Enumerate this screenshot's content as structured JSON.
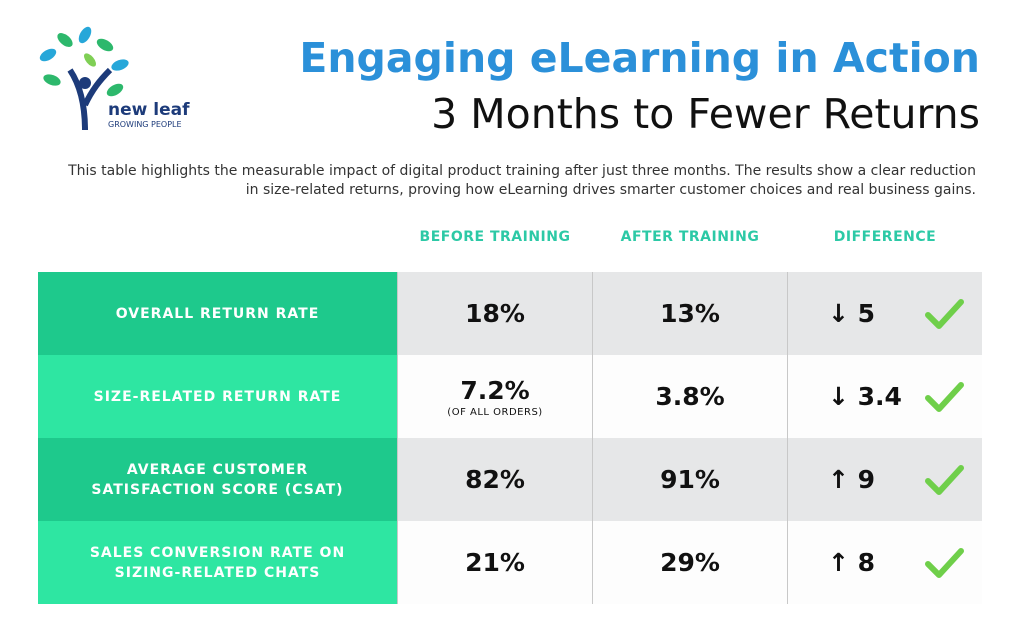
{
  "logo": {
    "name": "new leaf",
    "tagline": "GROWING PEOPLE"
  },
  "header": {
    "title": "Engaging eLearning in Action",
    "subtitle": "3 Months to Fewer Returns",
    "description": "This table highlights the measurable impact of digital product training after just three months. The results show a clear reduction in size-related returns, proving how eLearning drives smarter customer choices and real business gains."
  },
  "table": {
    "columns": [
      "BEFORE TRAINING",
      "AFTER TRAINING",
      "DIFFERENCE"
    ],
    "rows": [
      {
        "label": "OVERALL RETURN RATE",
        "before": "18%",
        "after": "13%",
        "difference": "↓ 5"
      },
      {
        "label": "SIZE-RELATED RETURN RATE",
        "before": "7.2%",
        "before_note": "(OF ALL ORDERS)",
        "after": "3.8%",
        "difference": "↓ 3.4"
      },
      {
        "label": "AVERAGE CUSTOMER SATISFACTION SCORE (CSAT)",
        "before": "82%",
        "after": "91%",
        "difference": "↑ 9"
      },
      {
        "label": "SALES CONVERSION RATE ON SIZING-RELATED CHATS",
        "before": "21%",
        "after": "29%",
        "difference": "↑ 8"
      }
    ]
  }
}
